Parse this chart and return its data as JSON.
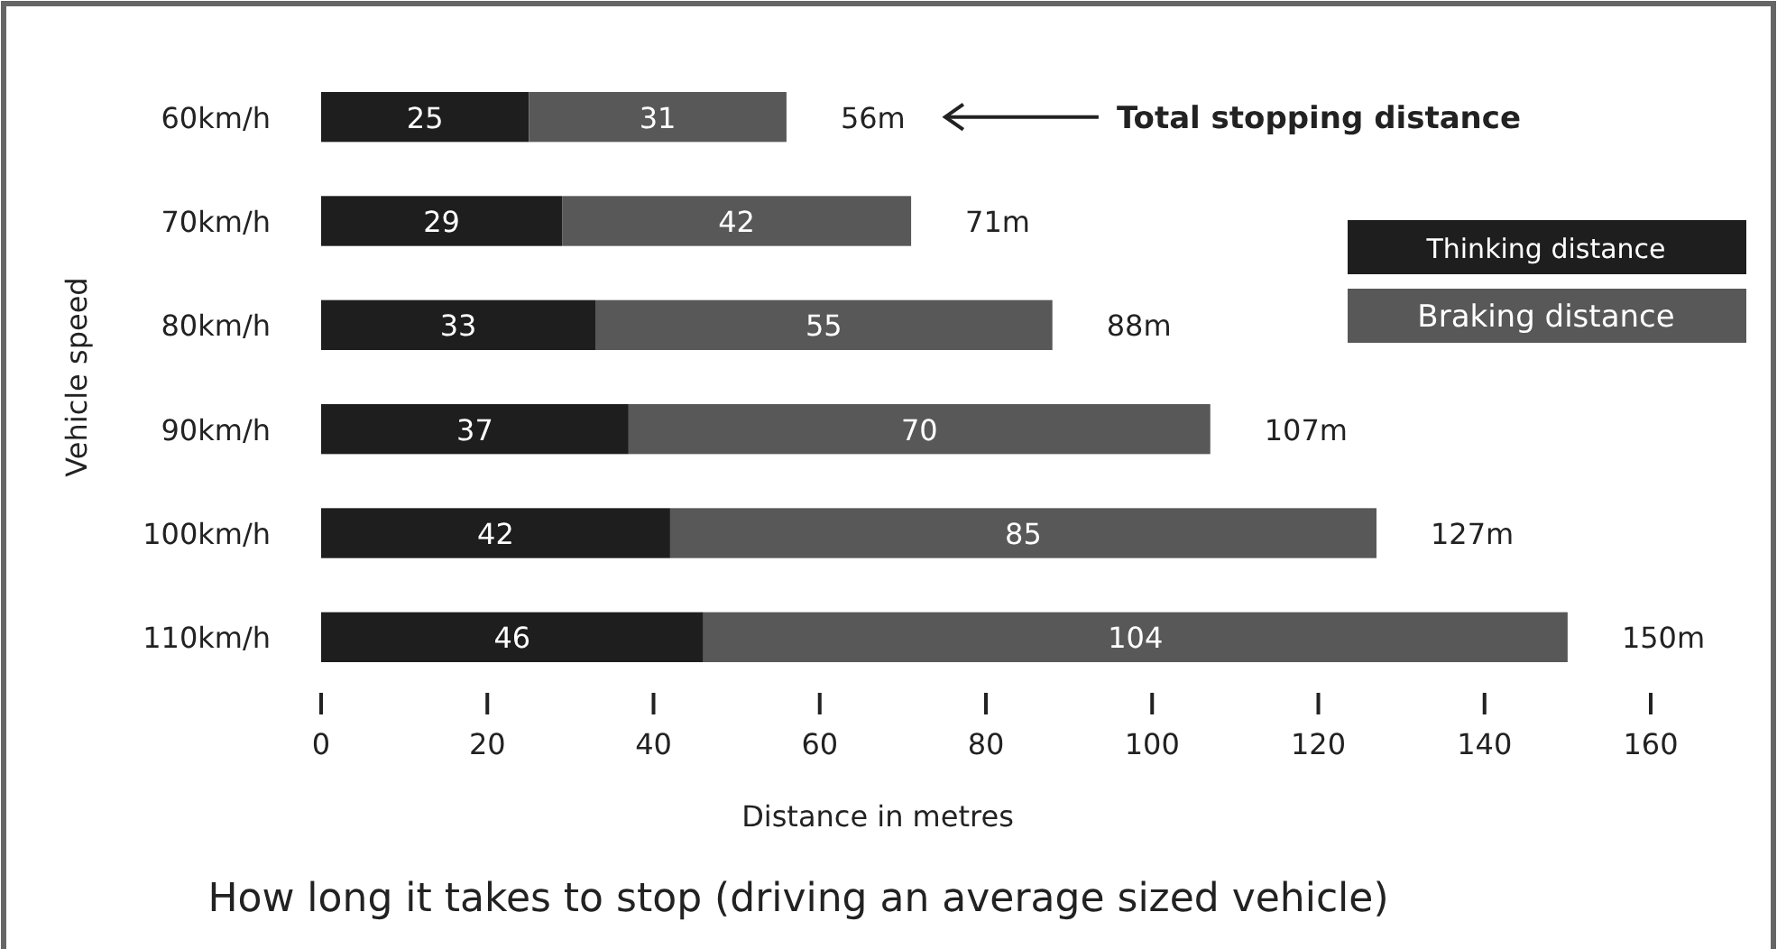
{
  "chart_data": {
    "type": "bar",
    "orientation": "horizontal",
    "stacked": true,
    "title": "How long it takes to stop (driving an average sized vehicle)",
    "xlabel": "Distance in metres",
    "ylabel": "Vehicle speed",
    "categories": [
      "60km/h",
      "70km/h",
      "80km/h",
      "90km/h",
      "100km/h",
      "110km/h"
    ],
    "series": [
      {
        "name": "Thinking distance",
        "color": "#1e1e1e",
        "values": [
          25,
          29,
          33,
          37,
          42,
          46
        ]
      },
      {
        "name": "Braking distance",
        "color": "#585858",
        "values": [
          31,
          42,
          55,
          70,
          85,
          104
        ]
      }
    ],
    "data_labels": true,
    "totals": [
      "56m",
      "71m",
      "88m",
      "107m",
      "127m",
      "150m"
    ],
    "annotations": [
      "Total stopping distance"
    ],
    "xlim": [
      0,
      160
    ],
    "xticks": [
      0,
      20,
      40,
      60,
      80,
      100,
      120,
      140,
      160
    ],
    "grid": false,
    "legend": "right"
  }
}
